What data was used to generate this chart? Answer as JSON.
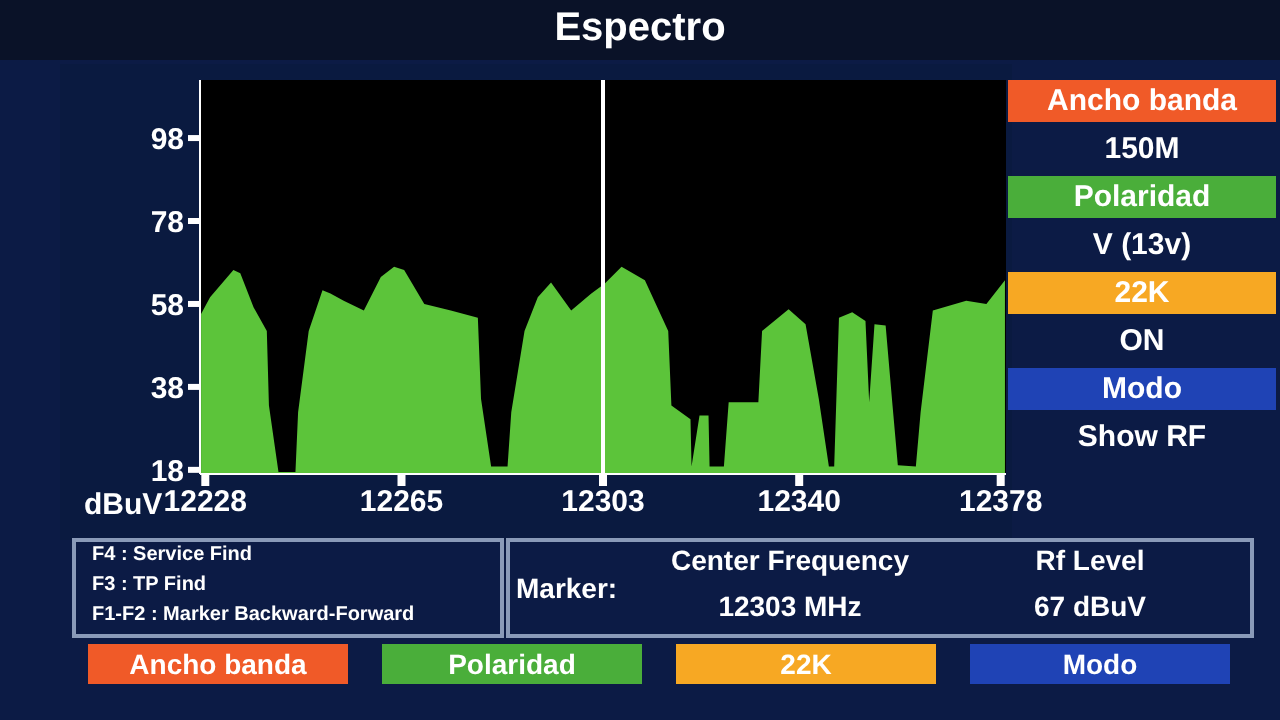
{
  "chart_data": {
    "type": "area",
    "title": "Espectro",
    "ylabel": "dBuV",
    "x": [
      12227.2,
      12228.9,
      12233.3,
      12234.6,
      12237.1,
      12239.6,
      12240,
      12241.8,
      12245,
      12245.5,
      12247.5,
      12250.1,
      12251.6,
      12254.1,
      12257.9,
      12261.1,
      12263.6,
      12265.5,
      12269.3,
      12274.3,
      12279.4,
      12280,
      12281.9,
      12285,
      12285.7,
      12288.2,
      12290.7,
      12293.2,
      12297,
      12300.8,
      12303.3,
      12306.5,
      12310.9,
      12315.3,
      12315.9,
      12319.5,
      12319.7,
      12321.2,
      12322.9,
      12323.1,
      12325.8,
      12326.7,
      12332.3,
      12333,
      12338,
      12341.2,
      12343.7,
      12345.6,
      12346.6,
      12347.5,
      12350,
      12352.5,
      12353.2,
      12354.2,
      12356.3,
      12357.6,
      12358.6,
      12362,
      12362.9,
      12365.2,
      12371.5,
      12375.3,
      12378.8
    ],
    "series": [
      {
        "color": "#5cc43a",
        "values": [
          55.6,
          59.6,
          66.2,
          65.4,
          57.2,
          51.5,
          33.5,
          17.5,
          17.5,
          31.9,
          51.5,
          61.3,
          60.5,
          58.8,
          56.4,
          64.5,
          67,
          66.2,
          58,
          56.4,
          54.7,
          35.1,
          18.8,
          18.8,
          31.9,
          51.5,
          59.6,
          63.2,
          56.4,
          60.5,
          62.9,
          67,
          63.7,
          51.5,
          33.5,
          30.2,
          18.8,
          31.1,
          31.1,
          18.8,
          18.8,
          34.3,
          34.3,
          51.5,
          56.7,
          53.1,
          35.1,
          18.8,
          18.8,
          54.7,
          56,
          53.9,
          34.3,
          53.1,
          52.8,
          33.5,
          19.1,
          18.8,
          31.9,
          56.4,
          58.8,
          58,
          63.7
        ]
      }
    ],
    "xlim": [
      12227,
      12379
    ],
    "xticks": [
      12228,
      12265,
      12303,
      12340,
      12378
    ],
    "ylim": [
      17,
      112
    ],
    "yticks": [
      18,
      38,
      58,
      78,
      98
    ],
    "ref_lines": [
      {
        "axis": "x",
        "value": 12303,
        "color": "#ffffff"
      }
    ],
    "annotations": [
      "Ancho banda",
      "150M",
      "Polaridad",
      "V (13v)",
      "22K",
      "ON",
      "Modo",
      "Show RF",
      "F4 : Service Find",
      "F3 : TP Find",
      "F1-F2 : Marker Backward-Forward",
      "Marker:",
      "Center Frequency",
      "12303 MHz",
      "Rf Level",
      "67 dBuV",
      "Ancho banda",
      "Polaridad",
      "22K",
      "Modo"
    ]
  }
}
